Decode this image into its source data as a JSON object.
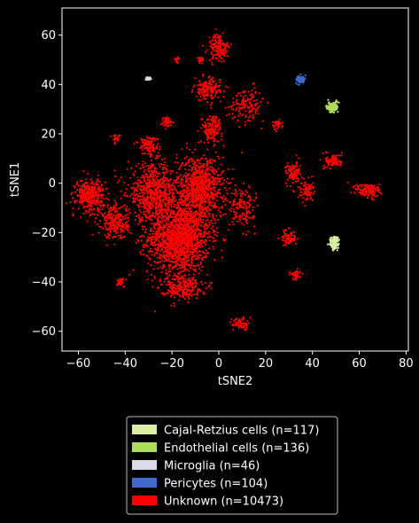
{
  "chart_data": {
    "type": "scatter",
    "xlabel": "tSNE2",
    "ylabel": "tSNE1",
    "xlim": [
      -67,
      81
    ],
    "ylim": [
      -68,
      71
    ],
    "xticks": [
      -60,
      -40,
      -20,
      0,
      20,
      40,
      60,
      80
    ],
    "yticks": [
      -60,
      -40,
      -20,
      0,
      20,
      40,
      60
    ],
    "xtick_labels": [
      "−60",
      "−40",
      "−20",
      "0",
      "20",
      "40",
      "60",
      "80"
    ],
    "ytick_labels": [
      "−60",
      "−40",
      "−20",
      "0",
      "20",
      "40",
      "60"
    ],
    "grid": false,
    "legend_position": "bottom-center",
    "background": "#000000",
    "series": [
      {
        "name": "Cajal-Retzius cells (n=117)",
        "color": "#d9f0a3",
        "clusters": [
          {
            "x": 49.5,
            "y": -24.5,
            "spread_x": 1.8,
            "spread_y": 2.6,
            "n": 117
          }
        ]
      },
      {
        "name": "Endothelial cells (n=136)",
        "color": "#addd5a",
        "clusters": [
          {
            "x": 48.5,
            "y": 31,
            "spread_x": 2.2,
            "spread_y": 2.0,
            "n": 136
          }
        ]
      },
      {
        "name": "Microglia (n=46)",
        "color": "#dadaeb",
        "clusters": [
          {
            "x": -30,
            "y": 42.3,
            "spread_x": 1.2,
            "spread_y": 0.6,
            "n": 46
          }
        ]
      },
      {
        "name": "Pericytes (n=104)",
        "color": "#4169cf",
        "clusters": [
          {
            "x": 35,
            "y": 42,
            "spread_x": 1.6,
            "spread_y": 1.4,
            "n": 104
          }
        ]
      },
      {
        "name": "Unknown (n=10473)",
        "color": "#ff0000",
        "clusters": [
          {
            "x": -17,
            "y": -22,
            "spread_x": 12,
            "spread_y": 13,
            "n": 1600
          },
          {
            "x": -8,
            "y": -2,
            "spread_x": 9,
            "spread_y": 12,
            "n": 900
          },
          {
            "x": -28,
            "y": -4,
            "spread_x": 10,
            "spread_y": 10,
            "n": 700
          },
          {
            "x": -55,
            "y": -5,
            "spread_x": 5.5,
            "spread_y": 6,
            "n": 350
          },
          {
            "x": -44,
            "y": -16,
            "spread_x": 5,
            "spread_y": 6,
            "n": 250
          },
          {
            "x": -5,
            "y": 38,
            "spread_x": 5,
            "spread_y": 4,
            "n": 160
          },
          {
            "x": 0,
            "y": 55,
            "spread_x": 4,
            "spread_y": 5,
            "n": 150
          },
          {
            "x": -3,
            "y": 22,
            "spread_x": 4,
            "spread_y": 5,
            "n": 150
          },
          {
            "x": 12,
            "y": 32,
            "spread_x": 7,
            "spread_y": 6,
            "n": 140
          },
          {
            "x": 10,
            "y": -10,
            "spread_x": 5,
            "spread_y": 7,
            "n": 150
          },
          {
            "x": 25,
            "y": 24,
            "spread_x": 2,
            "spread_y": 2,
            "n": 40
          },
          {
            "x": 32,
            "y": 4,
            "spread_x": 3,
            "spread_y": 4,
            "n": 100
          },
          {
            "x": 37,
            "y": -3,
            "spread_x": 3,
            "spread_y": 4,
            "n": 80
          },
          {
            "x": 49,
            "y": 9,
            "spread_x": 3.2,
            "spread_y": 2.8,
            "n": 100
          },
          {
            "x": 64,
            "y": -3,
            "spread_x": 5,
            "spread_y": 2.8,
            "n": 130
          },
          {
            "x": 30,
            "y": -22,
            "spread_x": 3,
            "spread_y": 3,
            "n": 70
          },
          {
            "x": 33,
            "y": -37,
            "spread_x": 2,
            "spread_y": 2,
            "n": 40
          },
          {
            "x": 9,
            "y": -57,
            "spread_x": 3,
            "spread_y": 2.5,
            "n": 60
          },
          {
            "x": -16,
            "y": -42,
            "spread_x": 8,
            "spread_y": 4,
            "n": 250
          },
          {
            "x": -30,
            "y": 15,
            "spread_x": 4,
            "spread_y": 4,
            "n": 120
          },
          {
            "x": -22,
            "y": 25,
            "spread_x": 2.5,
            "spread_y": 2,
            "n": 40
          },
          {
            "x": -44,
            "y": 18,
            "spread_x": 1.5,
            "spread_y": 1.5,
            "n": 30
          },
          {
            "x": -42,
            "y": -40,
            "spread_x": 2,
            "spread_y": 2,
            "n": 30
          },
          {
            "x": -8,
            "y": 50,
            "spread_x": 1.2,
            "spread_y": 1.2,
            "n": 20
          },
          {
            "x": -18,
            "y": 50,
            "spread_x": 1,
            "spread_y": 1,
            "n": 15
          }
        ]
      }
    ]
  }
}
